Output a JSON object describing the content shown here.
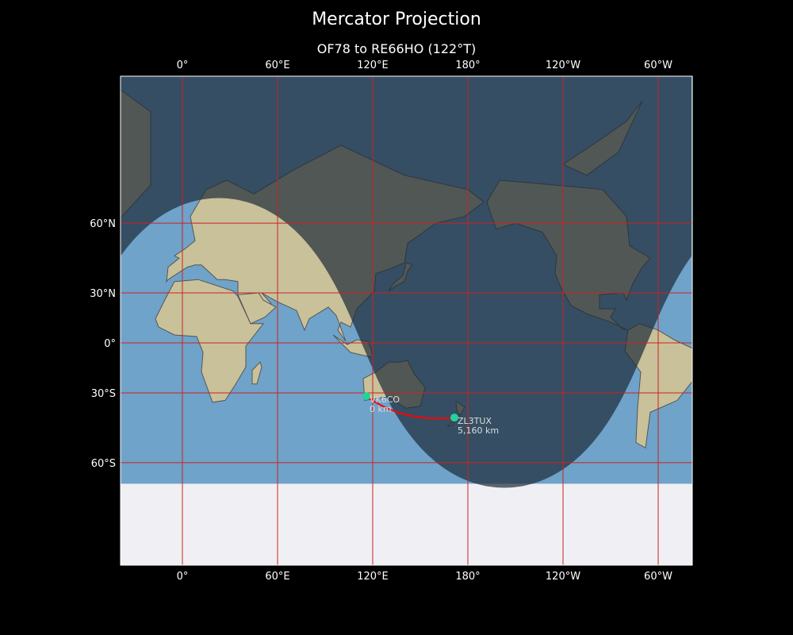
{
  "figure": {
    "title": "Mercator Projection",
    "subtitle": "OF78 to RE66HO (122°T)"
  },
  "map": {
    "projection": "mercator",
    "lon_extent": [
      -39,
      321
    ],
    "lat_extent": [
      -84,
      87
    ],
    "lon_ticks": [
      {
        "lon": 0,
        "label": "0°"
      },
      {
        "lon": 60,
        "label": "60°E"
      },
      {
        "lon": 120,
        "label": "120°E"
      },
      {
        "lon": 180,
        "label": "180°"
      },
      {
        "lon": 240,
        "label": "120°W"
      },
      {
        "lon": 300,
        "label": "60°W"
      }
    ],
    "lat_ticks": [
      {
        "lat": 60,
        "label": "60°N"
      },
      {
        "lat": 30,
        "label": "30°N"
      },
      {
        "lat": 0,
        "label": "0°"
      },
      {
        "lat": -30,
        "label": "30°S"
      },
      {
        "lat": -60,
        "label": "60°S"
      }
    ],
    "antisolar_point": {
      "lon": 203,
      "lat": 23
    },
    "colors": {
      "ocean": "#6fa3c9",
      "land": "#c9c19a",
      "ice": "#f0f0f4",
      "night": "#1c2a38",
      "grid": "#cc2222",
      "path": "#ff0000",
      "station": "#22d39a"
    },
    "stations": [
      {
        "call": "VK6CO",
        "dist": "0 km",
        "lon": 116,
        "lat": -31.8
      },
      {
        "call": "ZL3TUX",
        "dist": "5,160 km",
        "lon": 171.5,
        "lat": -42.5
      }
    ]
  }
}
